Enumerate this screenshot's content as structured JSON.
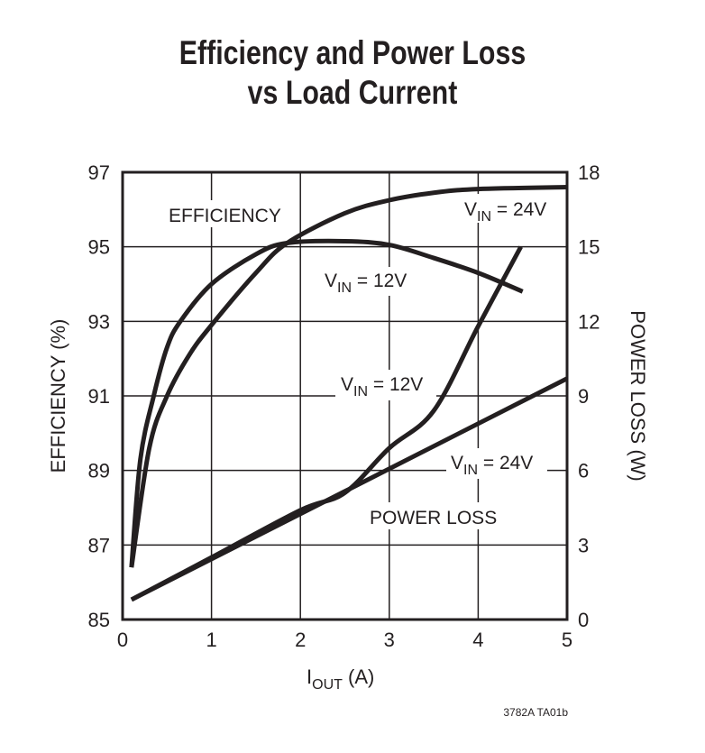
{
  "chart_data": {
    "type": "line",
    "title": [
      "Efficiency and Power Loss",
      "vs Load Current"
    ],
    "xlabel": {
      "main": "I",
      "sub": "OUT",
      "rest": " (A)"
    },
    "ylabel_left": "EFFICIENCY (%)",
    "ylabel_right": "POWER LOSS (W)",
    "xlim": [
      0,
      5
    ],
    "ylim_left": [
      85,
      97
    ],
    "ylim_right": [
      0,
      18
    ],
    "xticks": [
      0,
      1,
      2,
      3,
      4,
      5
    ],
    "yticks_left": [
      85,
      87,
      89,
      91,
      93,
      95,
      97
    ],
    "yticks_right": [
      0,
      3,
      6,
      9,
      12,
      15,
      18
    ],
    "grid": true,
    "series": [
      {
        "name": "VIN = 12V",
        "axis": "left",
        "group": "EFFICIENCY",
        "x": [
          0.1,
          0.2,
          0.35,
          0.5,
          0.65,
          1.0,
          1.5,
          1.85,
          2.5,
          3.0,
          3.5,
          4.0,
          4.5
        ],
        "y": [
          86.4,
          89.3,
          91.0,
          92.3,
          93.0,
          94.0,
          94.8,
          95.1,
          95.15,
          95.05,
          94.7,
          94.3,
          93.8
        ]
      },
      {
        "name": "VIN = 24V",
        "axis": "left",
        "group": "EFFICIENCY",
        "x": [
          0.1,
          0.3,
          0.5,
          0.75,
          1.0,
          1.5,
          1.85,
          2.5,
          3.0,
          3.5,
          4.0,
          5.0
        ],
        "y": [
          86.4,
          89.6,
          91.0,
          92.1,
          92.9,
          94.3,
          95.1,
          95.9,
          96.25,
          96.45,
          96.55,
          96.6
        ]
      },
      {
        "name": "VIN = 12V",
        "axis": "right",
        "group": "POWER LOSS",
        "x": [
          0.1,
          1.0,
          2.0,
          2.5,
          3.0,
          3.5,
          4.0,
          4.48
        ],
        "y": [
          0.8,
          2.5,
          4.4,
          5.1,
          6.9,
          8.4,
          11.8,
          15.0
        ]
      },
      {
        "name": "VIN = 24V",
        "axis": "right",
        "group": "POWER LOSS",
        "x": [
          0.1,
          5.0
        ],
        "y": [
          0.8,
          9.7
        ]
      }
    ],
    "annotations": {
      "efficiency": "EFFICIENCY",
      "power_loss": "POWER LOSS",
      "vin_label": "V",
      "vin_sub": "IN",
      "eff24": " = 24V",
      "eff12": " = 12V",
      "pl12": " = 12V",
      "pl24": " = 24V"
    },
    "line_color": "#231f20",
    "figure_code": "3782A TA01b"
  }
}
